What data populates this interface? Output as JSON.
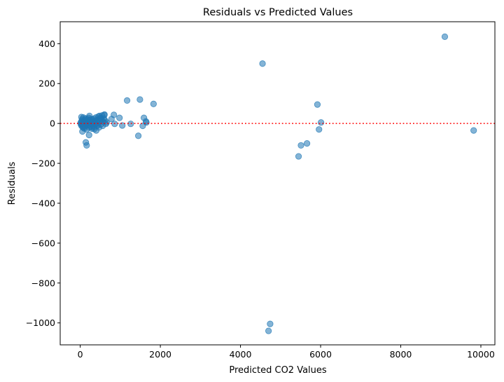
{
  "chart_data": {
    "type": "scatter",
    "title": "Residuals vs Predicted Values",
    "xlabel": "Predicted CO2 Values",
    "ylabel": "Residuals",
    "xlim": [
      -500,
      10350
    ],
    "ylim": [
      -1110,
      510
    ],
    "xticks": [
      0,
      2000,
      4000,
      6000,
      8000,
      10000
    ],
    "xtick_labels": [
      "0",
      "2000",
      "4000",
      "6000",
      "8000",
      "10000"
    ],
    "yticks": [
      400,
      200,
      0,
      -200,
      -400,
      -600,
      -800,
      -1000
    ],
    "ytick_labels": [
      "400",
      "200",
      "0",
      "−200",
      "−400",
      "−600",
      "−800",
      "−1000"
    ],
    "reference_line": {
      "y": 0,
      "style": "dotted",
      "color": "#ff0000"
    },
    "grid": false,
    "legend": "none",
    "point_color": "#1f77b4",
    "point_alpha": 0.55,
    "points": [
      [
        9,
        2
      ],
      [
        18,
        -5
      ],
      [
        24,
        8
      ],
      [
        33,
        -12
      ],
      [
        40,
        15
      ],
      [
        48,
        -3
      ],
      [
        55,
        22
      ],
      [
        62,
        -18
      ],
      [
        70,
        5
      ],
      [
        78,
        30
      ],
      [
        85,
        -8
      ],
      [
        92,
        12
      ],
      [
        100,
        -25
      ],
      [
        108,
        3
      ],
      [
        115,
        18
      ],
      [
        122,
        -15
      ],
      [
        130,
        7
      ],
      [
        138,
        25
      ],
      [
        145,
        -2
      ],
      [
        152,
        10
      ],
      [
        160,
        -30
      ],
      [
        168,
        14
      ],
      [
        175,
        2
      ],
      [
        182,
        -10
      ],
      [
        190,
        20
      ],
      [
        198,
        6
      ],
      [
        205,
        -6
      ],
      [
        212,
        28
      ],
      [
        220,
        -20
      ],
      [
        228,
        9
      ],
      [
        236,
        0
      ],
      [
        244,
        16
      ],
      [
        252,
        -14
      ],
      [
        260,
        4
      ],
      [
        268,
        22
      ],
      [
        276,
        -4
      ],
      [
        284,
        11
      ],
      [
        292,
        -26
      ],
      [
        300,
        6
      ],
      [
        310,
        19
      ],
      [
        320,
        -11
      ],
      [
        330,
        2
      ],
      [
        340,
        24
      ],
      [
        350,
        -18
      ],
      [
        360,
        8
      ],
      [
        370,
        14
      ],
      [
        380,
        -3
      ],
      [
        390,
        30
      ],
      [
        400,
        -35
      ],
      [
        410,
        10
      ],
      [
        420,
        0
      ],
      [
        430,
        18
      ],
      [
        440,
        -9
      ],
      [
        455,
        35
      ],
      [
        470,
        -20
      ],
      [
        485,
        12
      ],
      [
        500,
        28
      ],
      [
        515,
        -5
      ],
      [
        530,
        20
      ],
      [
        545,
        40
      ],
      [
        560,
        -12
      ],
      [
        575,
        8
      ],
      [
        590,
        25
      ],
      [
        605,
        45
      ],
      [
        620,
        15
      ],
      [
        640,
        -2
      ],
      [
        660,
        5
      ],
      [
        30,
        32
      ],
      [
        55,
        -40
      ],
      [
        70,
        -20
      ],
      [
        140,
        -95
      ],
      [
        160,
        -110
      ],
      [
        220,
        -58
      ],
      [
        230,
        38
      ],
      [
        280,
        -18
      ],
      [
        350,
        -28
      ],
      [
        420,
        -12
      ],
      [
        480,
        38
      ],
      [
        520,
        25
      ],
      [
        600,
        42
      ],
      [
        780,
        22
      ],
      [
        840,
        43
      ],
      [
        860,
        -2
      ],
      [
        980,
        28
      ],
      [
        1050,
        -10
      ],
      [
        1170,
        115
      ],
      [
        1260,
        -2
      ],
      [
        1450,
        -62
      ],
      [
        1490,
        120
      ],
      [
        1560,
        -12
      ],
      [
        1590,
        28
      ],
      [
        1640,
        10
      ],
      [
        1650,
        5
      ],
      [
        1830,
        98
      ],
      [
        4550,
        300
      ],
      [
        4700,
        -1040
      ],
      [
        4740,
        -1005
      ],
      [
        5450,
        -165
      ],
      [
        5510,
        -110
      ],
      [
        5660,
        -100
      ],
      [
        5920,
        95
      ],
      [
        5960,
        -30
      ],
      [
        6010,
        5
      ],
      [
        9100,
        435
      ],
      [
        9820,
        -35
      ]
    ]
  }
}
